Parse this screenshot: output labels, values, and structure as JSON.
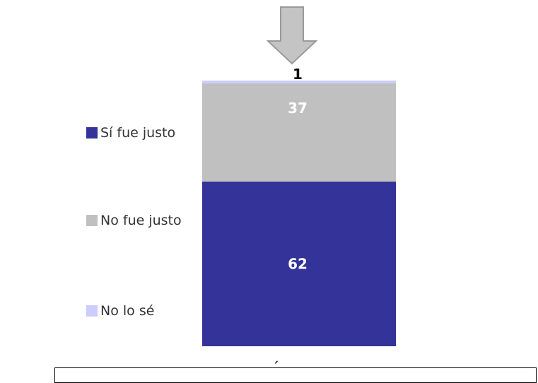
{
  "chart_data": {
    "type": "bar",
    "stacked": true,
    "categories": [
      ""
    ],
    "series": [
      {
        "name": "Sí fue justo",
        "values": [
          62
        ],
        "color": "#333399"
      },
      {
        "name": "No fue justo",
        "values": [
          37
        ],
        "color": "#c0c0c0"
      },
      {
        "name": "No lo sé",
        "values": [
          1
        ],
        "color": "#ccccff"
      }
    ],
    "ylim": [
      0,
      100
    ],
    "legend": "left",
    "grid": false
  },
  "fragment_text": "´"
}
